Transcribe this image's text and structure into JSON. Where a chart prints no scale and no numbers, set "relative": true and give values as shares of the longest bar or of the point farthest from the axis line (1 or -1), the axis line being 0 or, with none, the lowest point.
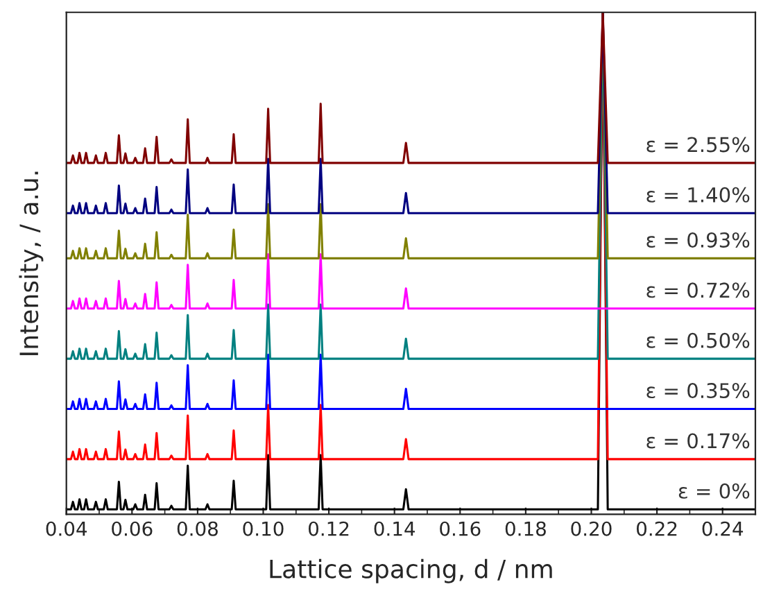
{
  "chart_data": {
    "type": "line",
    "relative": true,
    "xlabel": "Lattice spacing, d / nm",
    "ylabel": "Intensity, / a.u.",
    "xlim": [
      0.04,
      0.25
    ],
    "xticks": [
      0.04,
      0.06,
      0.08,
      {
        "value": 0.1,
        "label": "0.10"
      },
      0.12,
      0.14,
      0.16,
      0.18,
      {
        "value": 0.2,
        "label": "0.20"
      },
      0.22,
      0.24
    ],
    "tick_labels": "x",
    "grid": false,
    "legend": false,
    "marker": "none",
    "line_style": "solid",
    "x": [
      0.04,
      0.0414,
      0.042,
      0.0426,
      0.0434,
      0.044,
      0.0446,
      0.0454,
      0.046,
      0.0466,
      0.0484,
      0.049,
      0.0496,
      0.0514,
      0.052,
      0.0526,
      0.0554,
      0.056,
      0.0566,
      0.0574,
      0.058,
      0.0586,
      0.0604,
      0.061,
      0.0616,
      0.0634,
      0.064,
      0.0646,
      0.0669,
      0.0675,
      0.0681,
      0.0714,
      0.072,
      0.0726,
      0.0764,
      0.077,
      0.0776,
      0.0824,
      0.083,
      0.0836,
      0.0904,
      0.091,
      0.0916,
      0.1009,
      0.1015,
      0.1021,
      0.1169,
      0.1175,
      0.1181,
      0.1427,
      0.1435,
      0.1443,
      0.202,
      0.2035,
      0.205,
      0.25
    ],
    "series": [
      {
        "name": "ε = 0%",
        "color": "#000000",
        "values": [
          0.01,
          0.01,
          0.025,
          0.01,
          0.01,
          0.03,
          0.01,
          0.01,
          0.03,
          0.01,
          0.01,
          0.025,
          0.01,
          0.01,
          0.03,
          0.01,
          0.01,
          0.065,
          0.01,
          0.01,
          0.029,
          0.01,
          0.01,
          0.02,
          0.01,
          0.01,
          0.039,
          0.01,
          0.01,
          0.062,
          0.01,
          0.01,
          0.017,
          0.01,
          0.01,
          0.097,
          0.01,
          0.01,
          0.02,
          0.01,
          0.01,
          0.067,
          0.01,
          0.01,
          0.118,
          0.01,
          0.01,
          0.118,
          0.01,
          0.01,
          0.05,
          0.01,
          0.01,
          1.0,
          0.01,
          0.01
        ]
      },
      {
        "name": "ε = 0.17%",
        "color": "#ff0000",
        "values": [
          0.11,
          0.11,
          0.125,
          0.11,
          0.11,
          0.13,
          0.11,
          0.11,
          0.13,
          0.11,
          0.11,
          0.125,
          0.11,
          0.11,
          0.13,
          0.11,
          0.11,
          0.165,
          0.11,
          0.11,
          0.129,
          0.11,
          0.11,
          0.12,
          0.11,
          0.11,
          0.139,
          0.11,
          0.11,
          0.162,
          0.11,
          0.11,
          0.117,
          0.11,
          0.11,
          0.197,
          0.11,
          0.11,
          0.12,
          0.11,
          0.11,
          0.167,
          0.11,
          0.11,
          0.218,
          0.11,
          0.11,
          0.218,
          0.11,
          0.11,
          0.15,
          0.11,
          0.11,
          1.0,
          0.11,
          0.11
        ]
      },
      {
        "name": "ε = 0.35%",
        "color": "#0000ff",
        "values": [
          0.21,
          0.21,
          0.225,
          0.21,
          0.21,
          0.23,
          0.21,
          0.21,
          0.23,
          0.21,
          0.21,
          0.225,
          0.21,
          0.21,
          0.23,
          0.21,
          0.21,
          0.265,
          0.21,
          0.21,
          0.229,
          0.21,
          0.21,
          0.22,
          0.21,
          0.21,
          0.239,
          0.21,
          0.21,
          0.262,
          0.21,
          0.21,
          0.217,
          0.21,
          0.21,
          0.297,
          0.21,
          0.21,
          0.22,
          0.21,
          0.21,
          0.267,
          0.21,
          0.21,
          0.318,
          0.21,
          0.21,
          0.318,
          0.21,
          0.21,
          0.25,
          0.21,
          0.21,
          null,
          0.21,
          0.21
        ]
      },
      {
        "name": "ε = 0.50%",
        "color": "#008080",
        "values": [
          0.31,
          0.31,
          0.325,
          0.31,
          0.31,
          0.33,
          0.31,
          0.31,
          0.33,
          0.31,
          0.31,
          0.325,
          0.31,
          0.31,
          0.33,
          0.31,
          0.31,
          0.365,
          0.31,
          0.31,
          0.329,
          0.31,
          0.31,
          0.32,
          0.31,
          0.31,
          0.339,
          0.31,
          0.31,
          0.362,
          0.31,
          0.31,
          0.317,
          0.31,
          0.31,
          0.397,
          0.31,
          0.31,
          0.32,
          0.31,
          0.31,
          0.367,
          0.31,
          0.31,
          0.418,
          0.31,
          0.31,
          0.418,
          0.31,
          0.31,
          0.35,
          0.31,
          0.31,
          1.0,
          0.31,
          0.31
        ]
      },
      {
        "name": "ε = 0.72%",
        "color": "#ff00ff",
        "values": [
          0.41,
          0.41,
          0.425,
          0.41,
          0.41,
          0.43,
          0.41,
          0.41,
          0.43,
          0.41,
          0.41,
          0.425,
          0.41,
          0.41,
          0.43,
          0.41,
          0.41,
          0.465,
          0.41,
          0.41,
          0.429,
          0.41,
          0.41,
          0.42,
          0.41,
          0.41,
          0.439,
          0.41,
          0.41,
          0.462,
          0.41,
          0.41,
          0.417,
          0.41,
          0.41,
          0.497,
          0.41,
          0.41,
          0.42,
          0.41,
          0.41,
          0.467,
          0.41,
          0.41,
          0.518,
          0.41,
          0.41,
          0.518,
          0.41,
          0.41,
          0.45,
          0.41,
          0.41,
          null,
          0.41,
          0.41
        ]
      },
      {
        "name": "ε = 0.93%",
        "color": "#808000",
        "values": [
          0.51,
          0.51,
          0.525,
          0.51,
          0.51,
          0.53,
          0.51,
          0.51,
          0.53,
          0.51,
          0.51,
          0.525,
          0.51,
          0.51,
          0.53,
          0.51,
          0.51,
          0.565,
          0.51,
          0.51,
          0.529,
          0.51,
          0.51,
          0.52,
          0.51,
          0.51,
          0.539,
          0.51,
          0.51,
          0.562,
          0.51,
          0.51,
          0.517,
          0.51,
          0.51,
          0.597,
          0.51,
          0.51,
          0.52,
          0.51,
          0.51,
          0.567,
          0.51,
          0.51,
          0.618,
          0.51,
          0.51,
          0.618,
          0.51,
          0.51,
          0.55,
          0.51,
          0.51,
          1.0,
          0.51,
          0.51
        ]
      },
      {
        "name": "ε = 1.40%",
        "color": "#000080",
        "values": [
          0.6,
          0.6,
          0.615,
          0.6,
          0.6,
          0.62,
          0.6,
          0.6,
          0.62,
          0.6,
          0.6,
          0.615,
          0.6,
          0.6,
          0.62,
          0.6,
          0.6,
          0.655,
          0.6,
          0.6,
          0.619,
          0.6,
          0.6,
          0.61,
          0.6,
          0.6,
          0.629,
          0.6,
          0.6,
          0.652,
          0.6,
          0.6,
          0.607,
          0.6,
          0.6,
          0.687,
          0.6,
          0.6,
          0.61,
          0.6,
          0.6,
          0.657,
          0.6,
          0.6,
          0.708,
          0.6,
          0.6,
          0.708,
          0.6,
          0.6,
          0.64,
          0.6,
          0.6,
          1.0,
          0.6,
          0.6
        ]
      },
      {
        "name": "ε = 2.55%",
        "color": "#800000",
        "values": [
          0.7,
          0.7,
          0.715,
          0.7,
          0.7,
          0.72,
          0.7,
          0.7,
          0.72,
          0.7,
          0.7,
          0.715,
          0.7,
          0.7,
          0.72,
          0.7,
          0.7,
          0.755,
          0.7,
          0.7,
          0.719,
          0.7,
          0.7,
          0.71,
          0.7,
          0.7,
          0.729,
          0.7,
          0.7,
          0.752,
          0.7,
          0.7,
          0.707,
          0.7,
          0.7,
          0.787,
          0.7,
          0.7,
          0.71,
          0.7,
          0.7,
          0.757,
          0.7,
          0.7,
          0.808,
          0.7,
          0.7,
          0.818,
          0.7,
          0.7,
          0.74,
          0.7,
          0.7,
          1.0,
          0.7,
          0.7
        ]
      }
    ]
  }
}
